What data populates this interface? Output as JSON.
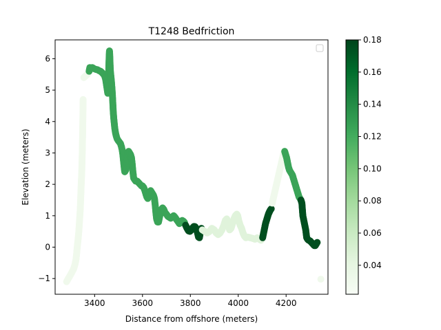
{
  "chart_data": {
    "type": "scatter",
    "title": "T1248 Bedfriction",
    "xlabel": "Distance from offshore (meters)",
    "ylabel": "Elevation (meters)",
    "xlim": [
      3235,
      4375
    ],
    "ylim": [
      -1.5,
      6.6
    ],
    "xticks": [
      3400,
      3600,
      3800,
      4000,
      4200
    ],
    "yticks": [
      -1,
      0,
      1,
      2,
      3,
      4,
      5,
      6
    ],
    "grid": false,
    "legend": {
      "location": "top-right",
      "entries": []
    },
    "colorbar": {
      "range": [
        0.022,
        0.18
      ],
      "ticks": [
        0.04,
        0.06,
        0.08,
        0.1,
        0.12,
        0.14,
        0.16,
        0.18
      ],
      "tick_labels": [
        "0.04",
        "0.06",
        "0.08",
        "0.10",
        "0.12",
        "0.14",
        "0.16",
        "0.18"
      ],
      "colormap": "Greens"
    },
    "segments": [
      {
        "c": 0.03,
        "pts": [
          [
            3283,
            -1.1
          ],
          [
            3290,
            -1.0
          ],
          [
            3298,
            -0.9
          ],
          [
            3305,
            -0.8
          ],
          [
            3312,
            -0.7
          ],
          [
            3318,
            -0.55
          ],
          [
            3322,
            -0.4
          ],
          [
            3325,
            -0.2
          ],
          [
            3328,
            0.05
          ],
          [
            3331,
            0.25
          ],
          [
            3334,
            0.5
          ],
          [
            3337,
            0.85
          ],
          [
            3340,
            1.2
          ],
          [
            3342,
            1.6
          ],
          [
            3344,
            2.0
          ],
          [
            3346,
            2.35
          ],
          [
            3347,
            2.6
          ],
          [
            3348,
            2.9
          ],
          [
            3350,
            3.65
          ],
          [
            3352,
            4.7
          ]
        ]
      },
      {
        "c": 0.03,
        "pts": [
          [
            3355,
            5.4
          ],
          [
            3362,
            5.45
          ],
          [
            3370,
            5.5
          ]
        ]
      },
      {
        "c": 0.125,
        "pts": [
          [
            3377,
            5.6
          ],
          [
            3380,
            5.72
          ],
          [
            3385,
            5.68
          ],
          [
            3390,
            5.72
          ],
          [
            3398,
            5.68
          ],
          [
            3405,
            5.66
          ],
          [
            3412,
            5.65
          ],
          [
            3418,
            5.62
          ],
          [
            3425,
            5.6
          ],
          [
            3432,
            5.55
          ],
          [
            3438,
            5.5
          ],
          [
            3442,
            5.45
          ],
          [
            3446,
            5.35
          ],
          [
            3449,
            5.2
          ],
          [
            3452,
            5.05
          ],
          [
            3455,
            4.9
          ],
          [
            3457,
            5.0
          ],
          [
            3458,
            5.3
          ],
          [
            3459,
            5.6
          ],
          [
            3460,
            5.9
          ],
          [
            3461,
            6.1
          ],
          [
            3462,
            6.25
          ],
          [
            3463,
            6.15
          ],
          [
            3464,
            5.95
          ],
          [
            3465,
            5.75
          ],
          [
            3466,
            5.6
          ],
          [
            3468,
            5.45
          ],
          [
            3470,
            5.3
          ],
          [
            3472,
            5.1
          ],
          [
            3474,
            4.9
          ],
          [
            3476,
            4.6
          ],
          [
            3478,
            4.3
          ],
          [
            3480,
            4.1
          ],
          [
            3482,
            3.95
          ],
          [
            3484,
            3.8
          ],
          [
            3487,
            3.65
          ],
          [
            3490,
            3.55
          ],
          [
            3494,
            3.45
          ],
          [
            3498,
            3.4
          ],
          [
            3503,
            3.35
          ],
          [
            3508,
            3.3
          ],
          [
            3512,
            3.2
          ],
          [
            3515,
            3.1
          ],
          [
            3518,
            2.95
          ],
          [
            3520,
            2.8
          ],
          [
            3522,
            2.65
          ],
          [
            3524,
            2.5
          ],
          [
            3526,
            2.4
          ],
          [
            3530,
            2.45
          ],
          [
            3534,
            2.7
          ],
          [
            3538,
            2.95
          ],
          [
            3542,
            3.05
          ],
          [
            3546,
            3.0
          ],
          [
            3550,
            2.95
          ],
          [
            3554,
            2.85
          ],
          [
            3557,
            2.65
          ],
          [
            3560,
            2.4
          ],
          [
            3563,
            2.2
          ],
          [
            3567,
            2.15
          ],
          [
            3572,
            2.1
          ],
          [
            3578,
            2.1
          ],
          [
            3584,
            2.05
          ],
          [
            3590,
            2.0
          ],
          [
            3596,
            1.95
          ],
          [
            3600,
            1.95
          ],
          [
            3605,
            1.9
          ],
          [
            3610,
            1.8
          ],
          [
            3614,
            1.7
          ],
          [
            3618,
            1.6
          ],
          [
            3622,
            1.55
          ],
          [
            3626,
            1.6
          ],
          [
            3630,
            1.75
          ],
          [
            3634,
            1.8
          ],
          [
            3638,
            1.75
          ],
          [
            3642,
            1.7
          ],
          [
            3646,
            1.65
          ],
          [
            3650,
            1.55
          ],
          [
            3653,
            1.35
          ],
          [
            3656,
            1.1
          ],
          [
            3659,
            0.9
          ],
          [
            3663,
            0.8
          ],
          [
            3667,
            0.8
          ],
          [
            3671,
            0.95
          ],
          [
            3675,
            1.1
          ],
          [
            3679,
            1.2
          ],
          [
            3684,
            1.25
          ],
          [
            3689,
            1.2
          ],
          [
            3694,
            1.1
          ],
          [
            3700,
            1.05
          ],
          [
            3706,
            0.98
          ],
          [
            3712,
            0.95
          ],
          [
            3718,
            0.92
          ],
          [
            3724,
            0.95
          ],
          [
            3730,
            1.0
          ],
          [
            3736,
            0.95
          ],
          [
            3742,
            0.88
          ],
          [
            3748,
            0.82
          ],
          [
            3754,
            0.75
          ],
          [
            3760,
            0.78
          ],
          [
            3766,
            0.85
          ],
          [
            3772,
            0.82
          ],
          [
            3776,
            0.78
          ]
        ]
      },
      {
        "c": 0.175,
        "pts": [
          [
            3780,
            0.7
          ],
          [
            3786,
            0.6
          ],
          [
            3792,
            0.52
          ],
          [
            3798,
            0.5
          ],
          [
            3804,
            0.55
          ],
          [
            3810,
            0.62
          ],
          [
            3815,
            0.66
          ],
          [
            3820,
            0.65
          ],
          [
            3825,
            0.58
          ],
          [
            3830,
            0.45
          ],
          [
            3834,
            0.32
          ],
          [
            3838,
            0.3
          ],
          [
            3842,
            0.5
          ],
          [
            3846,
            0.6
          ]
        ]
      },
      {
        "c": 0.045,
        "pts": [
          [
            3850,
            0.55
          ],
          [
            3860,
            0.5
          ],
          [
            3870,
            0.45
          ],
          [
            3880,
            0.5
          ],
          [
            3890,
            0.6
          ],
          [
            3900,
            0.55
          ],
          [
            3908,
            0.45
          ],
          [
            3916,
            0.4
          ],
          [
            3924,
            0.45
          ],
          [
            3932,
            0.55
          ],
          [
            3940,
            0.7
          ],
          [
            3946,
            0.85
          ],
          [
            3952,
            0.9
          ],
          [
            3958,
            0.75
          ],
          [
            3964,
            0.55
          ],
          [
            3970,
            0.6
          ],
          [
            3976,
            0.75
          ],
          [
            3982,
            0.9
          ],
          [
            3988,
            1.0
          ],
          [
            3994,
            1.05
          ],
          [
            3998,
            1.0
          ],
          [
            4002,
            0.85
          ],
          [
            4008,
            0.7
          ],
          [
            4014,
            0.6
          ],
          [
            4020,
            0.45
          ],
          [
            4026,
            0.35
          ],
          [
            4032,
            0.3
          ],
          [
            4040,
            0.32
          ],
          [
            4050,
            0.3
          ],
          [
            4060,
            0.28
          ],
          [
            4070,
            0.25
          ],
          [
            4080,
            0.3
          ],
          [
            4088,
            0.25
          ],
          [
            4095,
            0.22
          ],
          [
            4100,
            0.28
          ]
        ]
      },
      {
        "c": 0.175,
        "pts": [
          [
            4102,
            0.3
          ],
          [
            4106,
            0.45
          ],
          [
            4110,
            0.6
          ],
          [
            4114,
            0.75
          ],
          [
            4118,
            0.85
          ],
          [
            4122,
            0.95
          ],
          [
            4126,
            1.05
          ],
          [
            4130,
            1.12
          ],
          [
            4134,
            1.18
          ],
          [
            4138,
            1.22
          ]
        ]
      },
      {
        "c": 0.03,
        "pts": [
          [
            4142,
            1.4
          ],
          [
            4148,
            1.6
          ],
          [
            4154,
            1.8
          ],
          [
            4160,
            2.0
          ],
          [
            4166,
            2.2
          ],
          [
            4172,
            2.4
          ],
          [
            4178,
            2.6
          ],
          [
            4184,
            2.8
          ],
          [
            4190,
            3.0
          ]
        ]
      },
      {
        "c": 0.125,
        "pts": [
          [
            4194,
            3.05
          ],
          [
            4198,
            2.95
          ],
          [
            4202,
            2.85
          ],
          [
            4206,
            2.7
          ],
          [
            4210,
            2.55
          ],
          [
            4214,
            2.45
          ],
          [
            4218,
            2.4
          ],
          [
            4222,
            2.35
          ],
          [
            4226,
            2.3
          ],
          [
            4230,
            2.2
          ],
          [
            4234,
            2.1
          ],
          [
            4238,
            2.0
          ],
          [
            4242,
            1.9
          ],
          [
            4246,
            1.8
          ],
          [
            4250,
            1.7
          ],
          [
            4254,
            1.6
          ],
          [
            4258,
            1.55
          ]
        ]
      },
      {
        "c": 0.175,
        "pts": [
          [
            4262,
            1.5
          ],
          [
            4266,
            1.4
          ],
          [
            4270,
            1.0
          ],
          [
            4274,
            0.85
          ],
          [
            4278,
            0.7
          ],
          [
            4282,
            0.55
          ],
          [
            4286,
            0.3
          ],
          [
            4290,
            0.25
          ],
          [
            4294,
            0.22
          ],
          [
            4300,
            0.2
          ],
          [
            4306,
            0.15
          ],
          [
            4312,
            0.1
          ],
          [
            4318,
            0.05
          ],
          [
            4322,
            0.05
          ],
          [
            4326,
            0.1
          ],
          [
            4330,
            0.15
          ]
        ]
      },
      {
        "c": 0.03,
        "pts": [
          [
            4345,
            -1.02
          ]
        ]
      }
    ]
  }
}
